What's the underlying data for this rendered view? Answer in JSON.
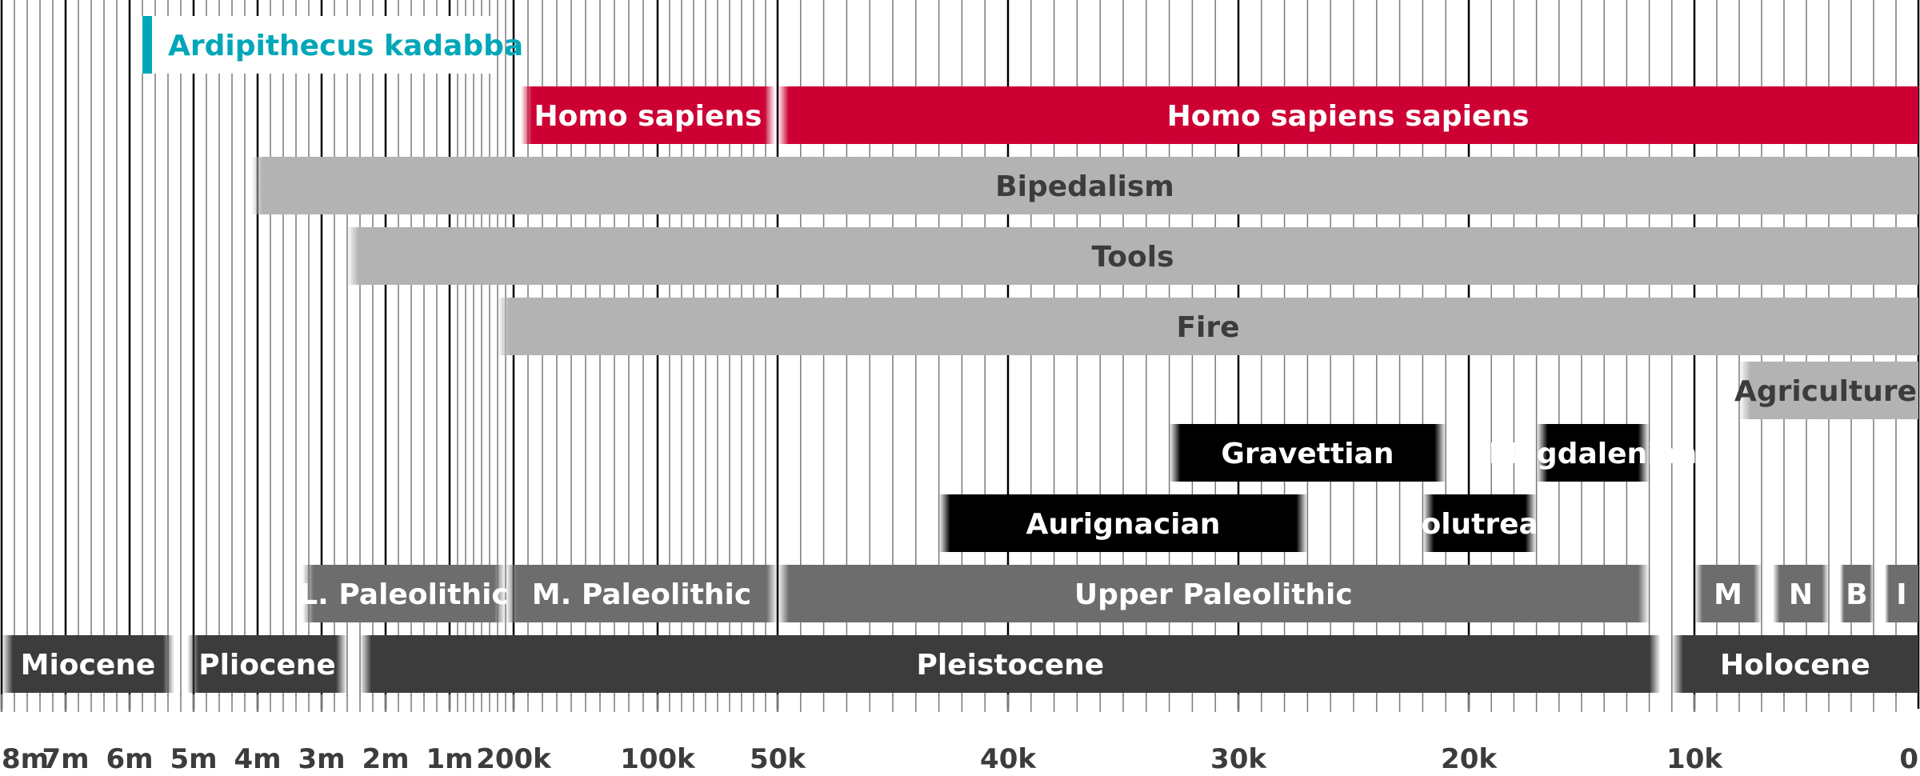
{
  "chart_data": {
    "type": "timeline",
    "axis_scale": "piecewise (millions, thousands, recent thousands)",
    "tick_labels": [
      "8m",
      "7m",
      "6m",
      "5m",
      "4m",
      "3m",
      "2m",
      "1m",
      "200k",
      "100k",
      "50k",
      "40k",
      "30k",
      "20k",
      "10k",
      "0"
    ],
    "ticks": [
      {
        "label": "8m",
        "years_ago": 8000000
      },
      {
        "label": "7m",
        "years_ago": 7000000
      },
      {
        "label": "6m",
        "years_ago": 6000000
      },
      {
        "label": "5m",
        "years_ago": 5000000
      },
      {
        "label": "4m",
        "years_ago": 4000000
      },
      {
        "label": "3m",
        "years_ago": 3000000
      },
      {
        "label": "2m",
        "years_ago": 2000000
      },
      {
        "label": "1m",
        "years_ago": 1000000
      },
      {
        "label": "200k",
        "years_ago": 200000
      },
      {
        "label": "100k",
        "years_ago": 100000
      },
      {
        "label": "50k",
        "years_ago": 50000
      },
      {
        "label": "40k",
        "years_ago": 40000
      },
      {
        "label": "30k",
        "years_ago": 30000
      },
      {
        "label": "20k",
        "years_ago": 20000
      },
      {
        "label": "10k",
        "years_ago": 10000
      },
      {
        "label": "0",
        "years_ago": 0
      }
    ],
    "rows": [
      {
        "bars": [
          {
            "label": "Ardipithecus kadabba",
            "start": 5800000,
            "end": 5500000,
            "color": "#00a7b8",
            "style": "marker"
          }
        ]
      },
      {
        "bars": [
          {
            "label": "Homo sapiens",
            "start": 195000,
            "end": 51000,
            "color": "#cc0033"
          },
          {
            "label": "Homo sapiens sapiens",
            "start": 50000,
            "end": 0,
            "color": "#cc0033"
          }
        ]
      },
      {
        "bars": [
          {
            "label": "Bipedalism",
            "start": 4100000,
            "end": 0,
            "color": "#b3b3b3"
          }
        ]
      },
      {
        "bars": [
          {
            "label": "Tools",
            "start": 2600000,
            "end": 0,
            "color": "#b3b3b3"
          }
        ]
      },
      {
        "bars": [
          {
            "label": "Fire",
            "start": 400000,
            "end": 0,
            "color": "#b3b3b3"
          }
        ]
      },
      {
        "bars": [
          {
            "label": "Agriculture",
            "start": 8000,
            "end": 0,
            "color": "#b3b3b3"
          }
        ]
      },
      {
        "bars": [
          {
            "label": "Gravettian",
            "start": 33000,
            "end": 21000,
            "color": "#000000"
          },
          {
            "label": "Magdalenian",
            "start": 17000,
            "end": 12000,
            "color": "#000000"
          }
        ]
      },
      {
        "bars": [
          {
            "label": "Aurignacian",
            "start": 43000,
            "end": 27000,
            "color": "#000000"
          },
          {
            "label": "Solutrean",
            "start": 22000,
            "end": 17000,
            "color": "#000000"
          }
        ]
      },
      {
        "bars": [
          {
            "label": "L. Paleolithic",
            "start": 3300000,
            "end": 300000,
            "color": "#6d6d6d"
          },
          {
            "label": "M. Paleolithic",
            "start": 300000,
            "end": 50000,
            "color": "#6d6d6d"
          },
          {
            "label": "Upper Paleolithic",
            "start": 50000,
            "end": 12000,
            "color": "#6d6d6d"
          },
          {
            "label": "M",
            "start": 10000,
            "end": 7000,
            "color": "#6d6d6d"
          },
          {
            "label": "N",
            "start": 6500,
            "end": 4000,
            "color": "#6d6d6d"
          },
          {
            "label": "B",
            "start": 3500,
            "end": 2000,
            "color": "#6d6d6d"
          },
          {
            "label": "I",
            "start": 1500,
            "end": 0,
            "color": "#6d6d6d"
          }
        ]
      },
      {
        "bars": [
          {
            "label": "Miocene",
            "start": 8000000,
            "end": 5300000,
            "color": "#3c3c3c"
          },
          {
            "label": "Pliocene",
            "start": 5100000,
            "end": 2600000,
            "color": "#3c3c3c"
          },
          {
            "label": "Pleistocene",
            "start": 2400000,
            "end": 11500,
            "color": "#3c3c3c"
          },
          {
            "label": "Holocene",
            "start": 11000,
            "end": 0,
            "color": "#3c3c3c"
          }
        ]
      }
    ],
    "colors": {
      "hominin": "#cc0033",
      "ardipithecus": "#00a7b8",
      "technology": "#b3b3b3",
      "culture": "#000000",
      "period": "#6d6d6d",
      "epoch": "#3c3c3c",
      "grid": "#000000",
      "axis_text": "#3c3c3c"
    }
  }
}
